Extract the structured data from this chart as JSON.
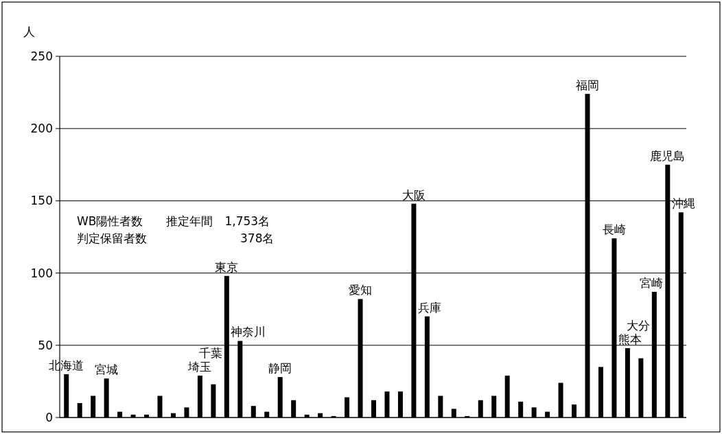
{
  "chart_data": {
    "type": "bar",
    "ylabel": "人",
    "categories": [
      null,
      null,
      null,
      null,
      null,
      null,
      null,
      null,
      null,
      null,
      null,
      null,
      null,
      null,
      null,
      null,
      null,
      null,
      null,
      null,
      null,
      null,
      null,
      null,
      null,
      null,
      null,
      null,
      null,
      null,
      null,
      null,
      null,
      null,
      null,
      null,
      null,
      null,
      null,
      null,
      null,
      null,
      null,
      null,
      null,
      null,
      null
    ],
    "value_labels": [
      "北海道",
      null,
      null,
      "宮城",
      null,
      null,
      null,
      null,
      null,
      null,
      "埼玉",
      "千葉",
      "東京",
      "神奈川",
      null,
      null,
      "静岡",
      null,
      null,
      null,
      null,
      null,
      "愛知",
      null,
      null,
      null,
      "大阪",
      "兵庫",
      null,
      null,
      null,
      null,
      null,
      null,
      null,
      null,
      null,
      null,
      null,
      "福岡",
      null,
      "長崎",
      "熊本",
      "大分",
      "宮崎",
      "鹿児島",
      "沖縄"
    ],
    "values": [
      30,
      10,
      15,
      27,
      4,
      2,
      2,
      15,
      3,
      7,
      29,
      23,
      98,
      53,
      8,
      4,
      28,
      12,
      2,
      3,
      1,
      14,
      82,
      12,
      18,
      18,
      148,
      70,
      15,
      6,
      1,
      12,
      15,
      29,
      11,
      7,
      4,
      24,
      9,
      224,
      35,
      124,
      48,
      41,
      87,
      175,
      142
    ],
    "color": "#000000",
    "ylim": [
      0,
      250
    ],
    "yticks": [
      0,
      50,
      100,
      150,
      200,
      250
    ],
    "grid": "y",
    "annotations": [
      "WB陽性者数　　推定年間　1,753名",
      "判定保留者数　　　　　　　　378名"
    ]
  }
}
